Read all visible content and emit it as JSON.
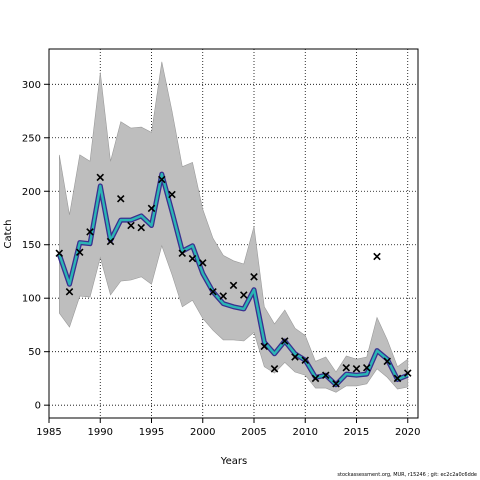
{
  "footer": {
    "text": "stockassessment.org, MUR, r15246 ; git: ec2c2a0c6dde"
  },
  "chart_data": {
    "type": "line",
    "title": "",
    "xlabel": "Years",
    "ylabel": "Catch",
    "xlim": [
      1985,
      2021
    ],
    "ylim": [
      -12,
      333
    ],
    "xticks": [
      1985,
      1990,
      1995,
      2000,
      2005,
      2010,
      2015,
      2020
    ],
    "yticks": [
      0,
      50,
      100,
      150,
      200,
      250,
      300
    ],
    "grid": true,
    "colors": {
      "band": "#bebebe",
      "band_edge": "#9a9a9a",
      "fit": "#3a2f8f",
      "fit_highlight": "#2bb5b5",
      "observed": "#000000"
    },
    "x": [
      1986,
      1987,
      1988,
      1989,
      1990,
      1991,
      1992,
      1993,
      1994,
      1995,
      1996,
      1997,
      1998,
      1999,
      2000,
      2001,
      2002,
      2003,
      2004,
      2005,
      2006,
      2007,
      2008,
      2009,
      2010,
      2011,
      2012,
      2013,
      2014,
      2015,
      2016,
      2017,
      2018,
      2019,
      2020
    ],
    "series": [
      {
        "role": "upper",
        "values": [
          234,
          178,
          234,
          228,
          311,
          228,
          265,
          259,
          260,
          255,
          321,
          275,
          223,
          227,
          183,
          156,
          140,
          135,
          132,
          167,
          92,
          76,
          89,
          72,
          65,
          41,
          45,
          31,
          46,
          43,
          45,
          82,
          61,
          36,
          43
        ]
      },
      {
        "role": "lower",
        "values": [
          86,
          73,
          102,
          101,
          138,
          103,
          116,
          117,
          120,
          113,
          149,
          122,
          92,
          98,
          81,
          70,
          61,
          61,
          60,
          68,
          36,
          30,
          40,
          31,
          28,
          16,
          16,
          12,
          18,
          18,
          20,
          34,
          26,
          15,
          17
        ]
      },
      {
        "role": "fit",
        "values": [
          141,
          113,
          152,
          151,
          205,
          154,
          173,
          173,
          177,
          168,
          216,
          181,
          144,
          149,
          123,
          106,
          95,
          92,
          90,
          108,
          59,
          48,
          60,
          48,
          42,
          26,
          28,
          19,
          29,
          28,
          29,
          51,
          43,
          24,
          28
        ]
      },
      {
        "role": "observed",
        "values": [
          142,
          106,
          143,
          162,
          213,
          153,
          193,
          168,
          166,
          184,
          211,
          197,
          142,
          137,
          133,
          106,
          102,
          112,
          103,
          120,
          55,
          34,
          60,
          45,
          42,
          25,
          28,
          20,
          35,
          34,
          35,
          139,
          41,
          25,
          30
        ]
      }
    ]
  }
}
